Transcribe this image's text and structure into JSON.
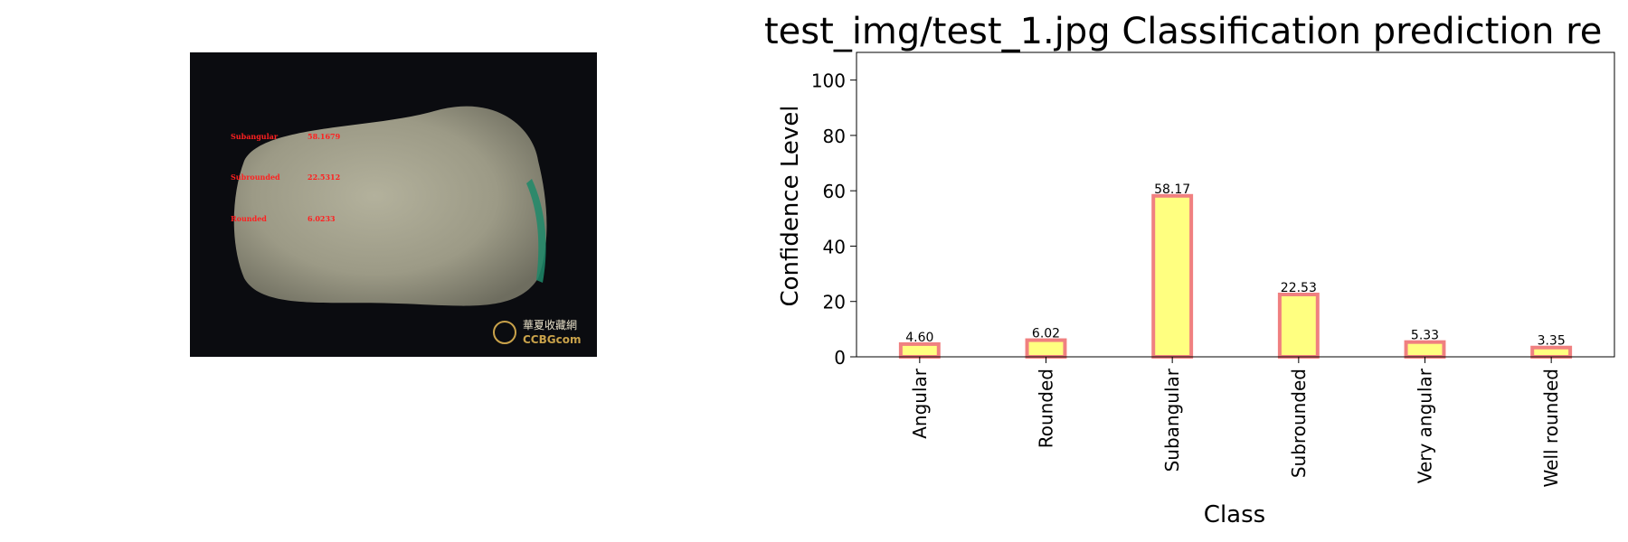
{
  "photo": {
    "overlay": [
      {
        "label": "Subangular",
        "value": "58.1679"
      },
      {
        "label": "Subrounded",
        "value": "22.5312"
      },
      {
        "label": "Rounded",
        "value": "6.0233"
      }
    ],
    "watermark_cn": "華夏收藏網",
    "watermark_en": "CCBGcom",
    "colors": {
      "overlay_text": "#ff2020",
      "rock": "#9c9a86",
      "background": "#0b0c10",
      "green_edge": "#1e8a6a"
    }
  },
  "chart_data": {
    "type": "bar",
    "title": "test_img/test_1.jpg Classification prediction re",
    "xlabel": "Class",
    "ylabel": "Confidence Level",
    "categories": [
      "Angular",
      "Rounded",
      "Subangular",
      "Subrounded",
      "Very angular",
      "Well rounded"
    ],
    "values": [
      4.6,
      6.02,
      58.17,
      22.53,
      5.33,
      3.35
    ],
    "value_labels": [
      "4.60",
      "6.02",
      "58.17",
      "22.53",
      "5.33",
      "3.35"
    ],
    "ylim": [
      0,
      110
    ],
    "yticks": [
      0,
      20,
      40,
      60,
      80,
      100
    ],
    "grid": false,
    "colors": {
      "bar_fill": "#ffff80",
      "bar_edge": "#f08080"
    }
  }
}
